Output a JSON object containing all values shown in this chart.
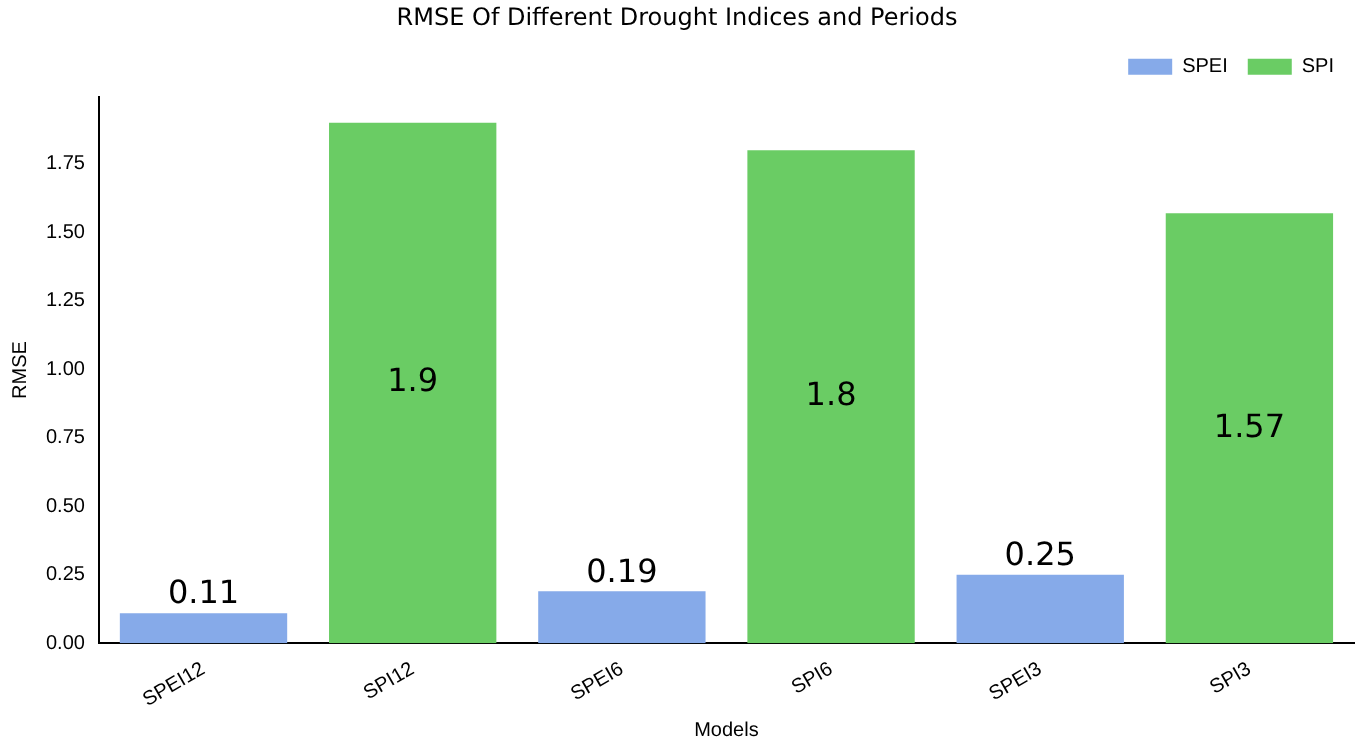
{
  "chart_data": {
    "type": "bar",
    "title": "RMSE Of Different Drought Indices and Periods",
    "xlabel": "Models",
    "ylabel": "RMSE",
    "categories": [
      "SPEI12",
      "SPI12",
      "SPEI6",
      "SPI6",
      "SPEI3",
      "SPI3"
    ],
    "series": [
      {
        "name": "SPEI",
        "color": "#86aae9",
        "values": [
          0.11,
          null,
          0.19,
          null,
          0.25,
          null
        ]
      },
      {
        "name": "SPI",
        "color": "#6acc64",
        "values": [
          null,
          1.9,
          null,
          1.8,
          null,
          1.57
        ]
      }
    ],
    "ylim": [
      0,
      1.995
    ],
    "yticks": [
      {
        "value": 0,
        "label": "0.00"
      },
      {
        "value": 0.25,
        "label": "0.25"
      },
      {
        "value": 0.5,
        "label": "0.50"
      },
      {
        "value": 0.75,
        "label": "0.75"
      },
      {
        "value": 1,
        "label": "1.00"
      },
      {
        "value": 1.25,
        "label": "1.25"
      },
      {
        "value": 1.5,
        "label": "1.50"
      },
      {
        "value": 1.75,
        "label": "1.75"
      }
    ],
    "data_labels": true,
    "legend": "top right",
    "grid": false
  }
}
